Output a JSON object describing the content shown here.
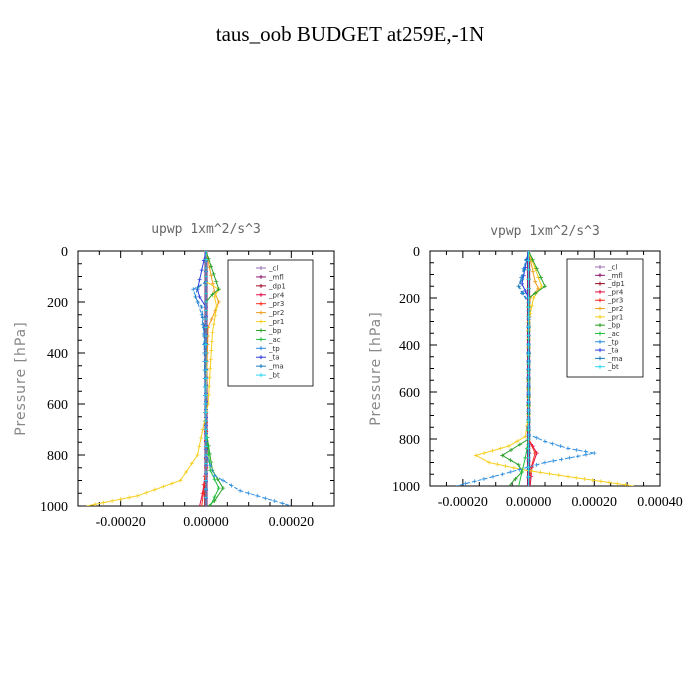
{
  "title": "taus_oob  BUDGET at259E,-1N",
  "chart_data": [
    {
      "type": "line",
      "title": "upwp   1xm^2/s^3",
      "ylabel": "Pressure [hPa]",
      "xlabel": "",
      "xlim": [
        -0.0003,
        0.0003
      ],
      "ylim": [
        1000,
        0
      ],
      "xticks": [
        -0.0002,
        0.0,
        0.0002
      ],
      "xtick_labels": [
        "-0.00020",
        "0.00000",
        "0.00020"
      ],
      "yticks": [
        0,
        200,
        400,
        600,
        800,
        1000
      ],
      "ytick_labels": [
        "0",
        "200",
        "400",
        "600",
        "800",
        "1000"
      ],
      "legend_position": "top-right",
      "series": [
        {
          "name": "_cl",
          "color": "#9a6fb0",
          "x": [
            0,
            0,
            0,
            0,
            0,
            0
          ],
          "y": [
            0,
            200,
            400,
            600,
            800,
            1000
          ]
        },
        {
          "name": "_mfl",
          "color": "#8b1a6b",
          "x": [
            0,
            0,
            0,
            0,
            0,
            0
          ],
          "y": [
            0,
            200,
            400,
            600,
            800,
            1000
          ]
        },
        {
          "name": "_dp1",
          "color": "#a0102a",
          "x": [
            0,
            0,
            0,
            0,
            1e-06,
            -3e-06,
            -3e-06
          ],
          "y": [
            0,
            200,
            400,
            600,
            850,
            950,
            1000
          ]
        },
        {
          "name": "_pr4",
          "color": "#e0104a",
          "x": [
            0,
            0,
            0,
            0,
            0,
            -8e-06,
            -1.5e-05
          ],
          "y": [
            0,
            200,
            400,
            600,
            850,
            950,
            1000
          ]
        },
        {
          "name": "_pr3",
          "color": "#ff3020",
          "x": [
            0,
            0,
            0,
            0,
            0,
            -6e-06,
            -1e-05
          ],
          "y": [
            0,
            200,
            400,
            600,
            850,
            950,
            1000
          ]
        },
        {
          "name": "_pr2",
          "color": "#f0a020",
          "x": [
            0,
            2e-05,
            3e-05,
            5e-06,
            0,
            0
          ],
          "y": [
            0,
            160,
            200,
            300,
            600,
            1000
          ]
        },
        {
          "name": "_pr1",
          "color": "#f5d020",
          "x": [
            0,
            0,
            3e-05,
            2e-05,
            2.5e-05,
            1.5e-05,
            5e-06,
            -2e-05,
            -6e-05,
            -0.00016,
            -0.00028
          ],
          "y": [
            0,
            120,
            150,
            180,
            220,
            320,
            600,
            800,
            900,
            960,
            1000
          ]
        },
        {
          "name": "_bp",
          "color": "#2aa02a",
          "x": [
            0,
            3e-05,
            1.5e-05,
            0,
            0,
            0,
            1.5e-05,
            4e-05,
            2e-05,
            5e-06
          ],
          "y": [
            0,
            150,
            170,
            200,
            400,
            700,
            860,
            930,
            980,
            1000
          ]
        },
        {
          "name": "_ac",
          "color": "#20c040",
          "x": [
            0,
            0,
            0,
            0,
            1e-05,
            3e-05,
            1e-05
          ],
          "y": [
            0,
            200,
            400,
            700,
            860,
            930,
            1000
          ]
        },
        {
          "name": "_tp",
          "color": "#3090e0",
          "x": [
            0,
            0,
            -3e-05,
            -2e-05,
            -1e-05,
            0,
            0,
            2e-05,
            8e-05,
            0.00014,
            0.0002
          ],
          "y": [
            0,
            120,
            150,
            200,
            250,
            400,
            800,
            880,
            940,
            970,
            1000
          ]
        },
        {
          "name": "_ta",
          "color": "#3040e0",
          "x": [
            0,
            -2e-05,
            -1.5e-05,
            0,
            0,
            0
          ],
          "y": [
            0,
            150,
            180,
            220,
            400,
            1000
          ]
        },
        {
          "name": "_ma",
          "color": "#2080c0",
          "x": [
            0,
            0,
            -2e-05,
            -2.5e-05,
            -1e-05,
            -5e-06,
            0,
            0
          ],
          "y": [
            0,
            120,
            145,
            180,
            220,
            300,
            800,
            1000
          ]
        },
        {
          "name": "_bt",
          "color": "#30d8f0",
          "x": [
            0,
            0,
            0,
            0,
            0,
            0
          ],
          "y": [
            0,
            200,
            400,
            600,
            800,
            1000
          ]
        }
      ]
    },
    {
      "type": "line",
      "title": "vpwp   1xm^2/s^3",
      "ylabel": "Pressure [hPa]",
      "xlabel": "",
      "xlim": [
        -0.0003,
        0.0004
      ],
      "ylim": [
        1000,
        0
      ],
      "xticks": [
        -0.0002,
        0.0,
        0.0002,
        0.0004
      ],
      "xtick_labels": [
        "-0.00020",
        "0.00000",
        "0.00020",
        "0.00040"
      ],
      "yticks": [
        0,
        200,
        400,
        600,
        800,
        1000
      ],
      "ytick_labels": [
        "0",
        "200",
        "400",
        "600",
        "800",
        "1000"
      ],
      "legend_position": "top-right",
      "series": [
        {
          "name": "_cl",
          "color": "#9a6fb0",
          "x": [
            0,
            0,
            0,
            0,
            0,
            0
          ],
          "y": [
            0,
            200,
            400,
            600,
            800,
            1000
          ]
        },
        {
          "name": "_mfl",
          "color": "#8b1a6b",
          "x": [
            0,
            0,
            0,
            0,
            0,
            0
          ],
          "y": [
            0,
            200,
            400,
            600,
            800,
            1000
          ]
        },
        {
          "name": "_dp1",
          "color": "#a0102a",
          "x": [
            0,
            0,
            0,
            0,
            2e-06,
            1e-06,
            0
          ],
          "y": [
            0,
            200,
            400,
            800,
            860,
            920,
            1000
          ]
        },
        {
          "name": "_pr4",
          "color": "#e0104a",
          "x": [
            0,
            0,
            0,
            0,
            2.5e-05,
            1e-05,
            5e-06
          ],
          "y": [
            0,
            200,
            400,
            800,
            860,
            920,
            1000
          ]
        },
        {
          "name": "_pr3",
          "color": "#ff3020",
          "x": [
            0,
            0,
            0,
            0,
            2e-05,
            8e-06,
            0
          ],
          "y": [
            0,
            200,
            400,
            800,
            860,
            920,
            1000
          ]
        },
        {
          "name": "_pr2",
          "color": "#f0a020",
          "x": [
            0,
            2e-05,
            3e-05,
            5e-06,
            0,
            0
          ],
          "y": [
            0,
            130,
            160,
            200,
            400,
            1000
          ]
        },
        {
          "name": "_pr1",
          "color": "#f5d020",
          "x": [
            0,
            4e-05,
            1.5e-05,
            0,
            0,
            -1e-05,
            -6e-05,
            -0.00016,
            -0.00012,
            -2e-05,
            0.00012,
            0.00032
          ],
          "y": [
            0,
            150,
            200,
            300,
            700,
            790,
            830,
            870,
            900,
            930,
            960,
            1000
          ]
        },
        {
          "name": "_bp",
          "color": "#2aa02a",
          "x": [
            0,
            5e-05,
            2e-05,
            0,
            0,
            -8e-05,
            -3e-05,
            -2e-05,
            -4e-05,
            -6e-05
          ],
          "y": [
            0,
            150,
            180,
            200,
            800,
            870,
            910,
            940,
            970,
            1000
          ]
        },
        {
          "name": "_ac",
          "color": "#20c040",
          "x": [
            0,
            0,
            0,
            0,
            -1e-05,
            -2e-05,
            -3e-05
          ],
          "y": [
            0,
            200,
            400,
            800,
            880,
            940,
            1000
          ]
        },
        {
          "name": "_tp",
          "color": "#3090e0",
          "x": [
            0,
            -3e-05,
            -1.5e-05,
            0,
            0,
            5e-05,
            0.00012,
            0.0002,
            5e-05,
            -8e-05,
            -0.00022
          ],
          "y": [
            0,
            150,
            180,
            220,
            780,
            810,
            840,
            860,
            900,
            950,
            1000
          ]
        },
        {
          "name": "_ta",
          "color": "#3040e0",
          "x": [
            0,
            -2e-05,
            -1e-05,
            0,
            0,
            0
          ],
          "y": [
            0,
            140,
            170,
            200,
            400,
            1000
          ]
        },
        {
          "name": "_ma",
          "color": "#2080c0",
          "x": [
            0,
            -2e-05,
            -3e-05,
            -2e-05,
            0,
            0
          ],
          "y": [
            0,
            120,
            150,
            180,
            220,
            1000
          ]
        },
        {
          "name": "_bt",
          "color": "#30d8f0",
          "x": [
            0,
            0,
            0,
            0,
            0,
            0
          ],
          "y": [
            0,
            200,
            400,
            600,
            800,
            1000
          ]
        }
      ]
    }
  ]
}
